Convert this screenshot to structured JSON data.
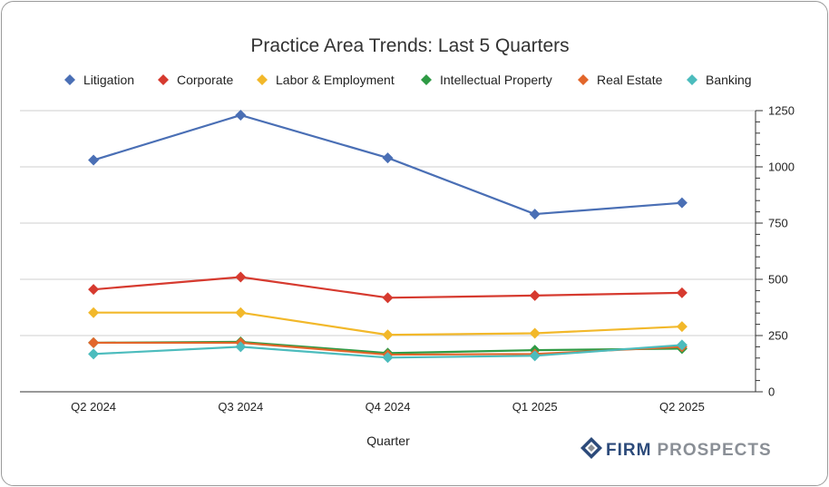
{
  "chart_data": {
    "type": "line",
    "title": "Practice Area Trends:  Last 5 Quarters",
    "xlabel": "Quarter",
    "ylabel": "",
    "categories": [
      "Q2 2024",
      "Q3 2024",
      "Q4 2024",
      "Q1 2025",
      "Q2 2025"
    ],
    "ylim": [
      0,
      1250
    ],
    "yticks": [
      0,
      250,
      500,
      750,
      1000,
      1250
    ],
    "y_axis_side": "right",
    "grid": true,
    "legend_position": "top",
    "series": [
      {
        "name": "Litigation",
        "color": "#4a6fb5",
        "values": [
          1030,
          1230,
          1040,
          790,
          840
        ]
      },
      {
        "name": "Corporate",
        "color": "#d63a2f",
        "values": [
          455,
          510,
          418,
          428,
          440
        ]
      },
      {
        "name": "Labor & Employment",
        "color": "#f2b82a",
        "values": [
          352,
          352,
          253,
          260,
          290
        ]
      },
      {
        "name": "Intellectual Property",
        "color": "#2e9a44",
        "values": [
          218,
          222,
          172,
          185,
          192
        ]
      },
      {
        "name": "Real Estate",
        "color": "#e2662b",
        "values": [
          218,
          218,
          165,
          168,
          200
        ]
      },
      {
        "name": "Banking",
        "color": "#4cbcbd",
        "values": [
          168,
          200,
          152,
          160,
          208
        ]
      }
    ]
  },
  "brand": {
    "name_part1": "FIRM",
    "name_part2": "PROSPECTS",
    "color1": "#2c4a7a",
    "color2": "#8a8f96",
    "icon": "firm-prospects-logo-icon"
  }
}
